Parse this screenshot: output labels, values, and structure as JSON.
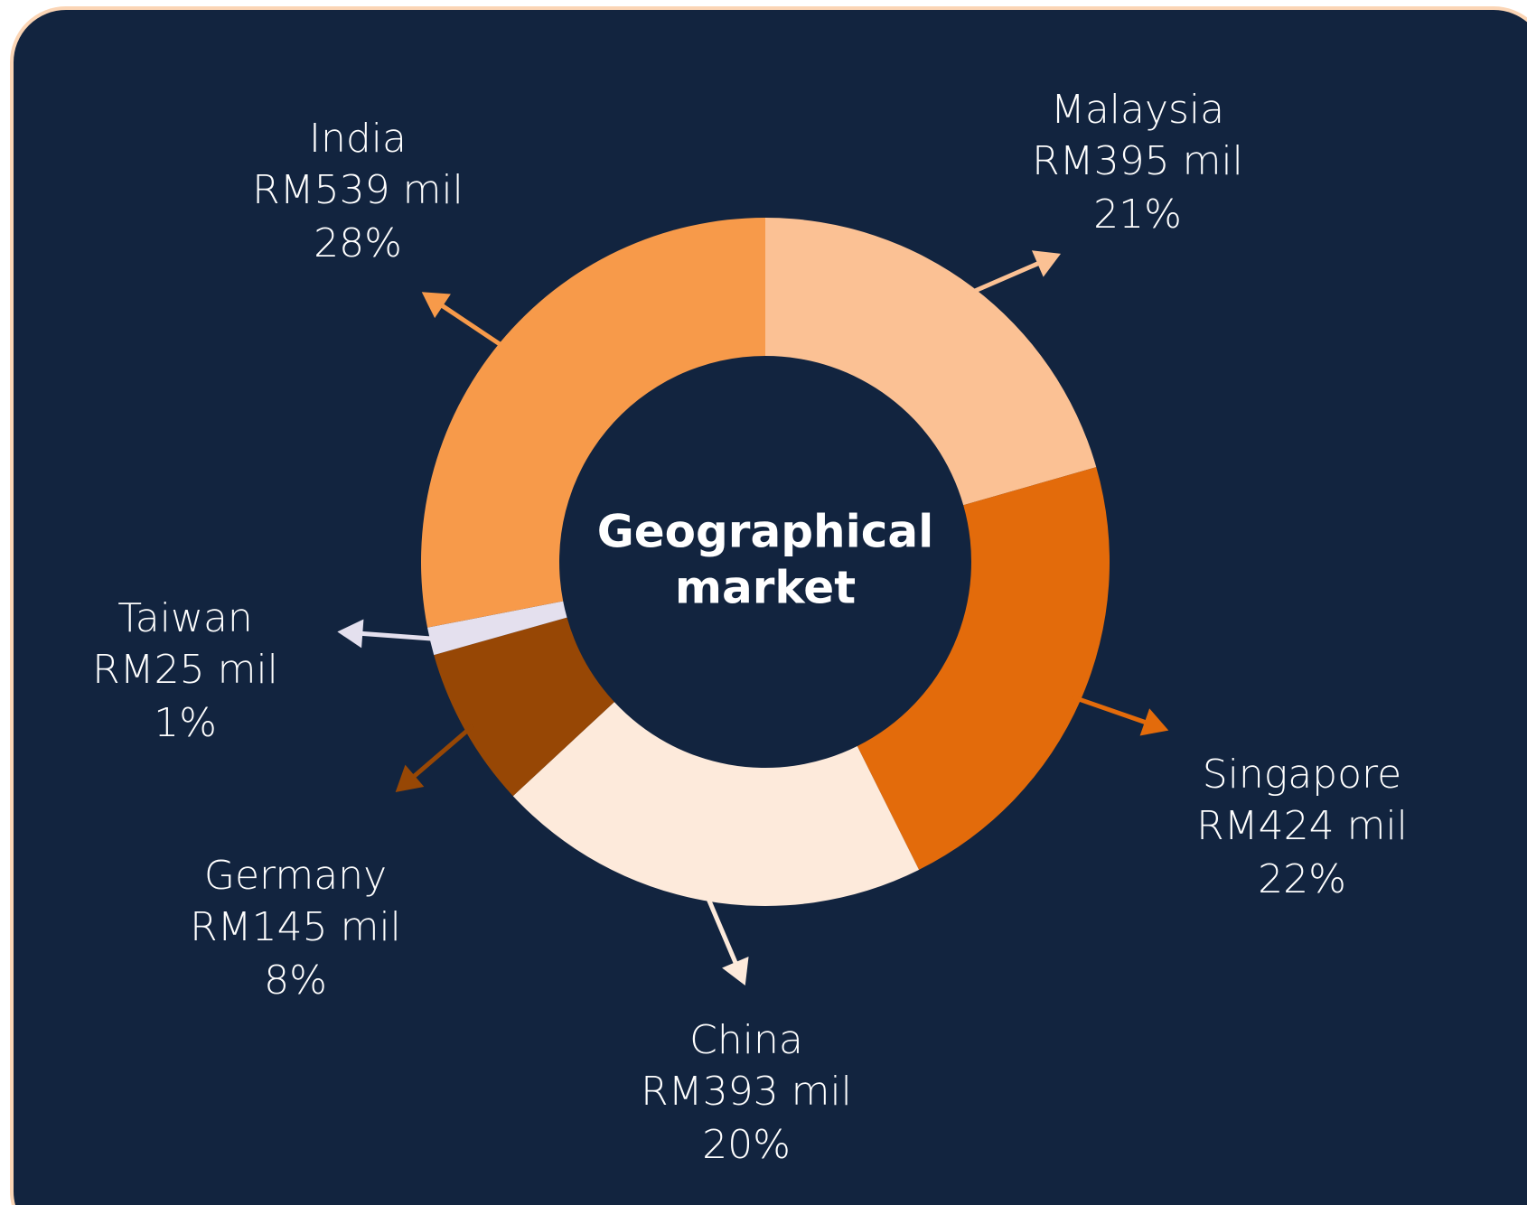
{
  "chart_data": {
    "type": "donut",
    "title_lines": [
      "Geographical",
      "market"
    ],
    "categories": [
      "Malaysia",
      "Singapore",
      "China",
      "Germany",
      "Taiwan",
      "India"
    ],
    "values": [
      395,
      424,
      393,
      145,
      25,
      539
    ],
    "value_labels": [
      "RM395 mil",
      "RM424 mil",
      "RM393 mil",
      "RM145 mil",
      "RM25 mil",
      "RM539 mil"
    ],
    "share_labels": [
      "21%",
      "22%",
      "20%",
      "8%",
      "1%",
      "28%"
    ],
    "colors": [
      "#fbc194",
      "#e36b0b",
      "#fdeadb",
      "#974705",
      "#e4e0ee",
      "#f79a4a"
    ]
  }
}
